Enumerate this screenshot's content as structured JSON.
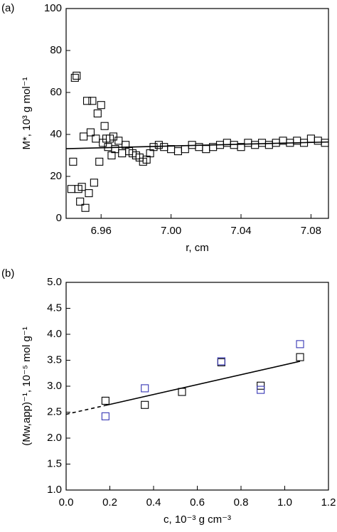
{
  "chart_data": [
    {
      "type": "scatter",
      "panel_label": "(a)",
      "x_label": "r, cm",
      "y_label": "M*, 10³ g mol⁻¹",
      "xlim": [
        6.94,
        7.09
      ],
      "xticks": [
        6.96,
        {
          "value": 7,
          "label": "7.00"
        },
        7.04,
        7.08
      ],
      "ylim": [
        0,
        100
      ],
      "yticks": [
        0,
        20,
        40,
        60,
        80,
        100
      ],
      "series": [
        {
          "color": "#000000",
          "x": [
            6.943,
            6.944,
            6.945,
            6.946,
            6.947,
            6.948,
            6.949,
            6.95,
            6.951,
            6.952,
            6.953,
            6.954,
            6.955,
            6.956,
            6.957,
            6.958,
            6.959,
            6.96,
            6.961,
            6.962,
            6.963,
            6.964,
            6.965,
            6.966,
            6.967,
            6.968,
            6.97,
            6.972,
            6.974,
            6.976,
            6.978,
            6.98,
            6.982,
            6.984,
            6.986,
            6.988,
            6.99,
            6.993,
            6.996,
            7.0,
            7.004,
            7.008,
            7.012,
            7.016,
            7.02,
            7.024,
            7.028,
            7.032,
            7.036,
            7.04,
            7.044,
            7.048,
            7.052,
            7.056,
            7.06,
            7.064,
            7.068,
            7.072,
            7.076,
            7.08,
            7.084,
            7.088
          ],
          "values": [
            14,
            27,
            67,
            68,
            14,
            8,
            15,
            39,
            5,
            56,
            12,
            41,
            56,
            17,
            38,
            50,
            27,
            54,
            36,
            44,
            38,
            34,
            38,
            30,
            39,
            33,
            37,
            31,
            35,
            32,
            31,
            30,
            29,
            27,
            28,
            31,
            34,
            35,
            34,
            33,
            32,
            33,
            35,
            34,
            33,
            34,
            35,
            36,
            35,
            34,
            36,
            35,
            36,
            35,
            36,
            37,
            36,
            37,
            36,
            38,
            37,
            36
          ]
        }
      ],
      "fit": {
        "color": "#000000",
        "x": [
          6.94,
          7.09
        ],
        "values": [
          33.2,
          36.4
        ]
      }
    },
    {
      "type": "scatter",
      "panel_label": "(b)",
      "x_label": "c, 10⁻³ g cm⁻³",
      "y_label": "(Mw,app)⁻¹, 10⁻⁵ mol g⁻¹",
      "xlim": [
        0,
        1.2
      ],
      "xticks": [
        {
          "value": 0,
          "label": "0.0"
        },
        0.2,
        0.4,
        0.6,
        0.8,
        {
          "value": 1,
          "label": "1.0"
        },
        1.2
      ],
      "ylim": [
        1,
        5
      ],
      "yticks": [
        {
          "value": 1,
          "label": "1.0"
        },
        1.5,
        {
          "value": 2,
          "label": "2.0"
        },
        2.5,
        {
          "value": 3,
          "label": "3.0"
        },
        3.5,
        {
          "value": 4,
          "label": "4.0"
        },
        4.5,
        {
          "value": 5,
          "label": "5.0"
        }
      ],
      "series": [
        {
          "color": "#000000",
          "x": [
            0.18,
            0.36,
            0.53,
            0.71,
            0.89,
            1.07
          ],
          "values": [
            2.72,
            2.64,
            2.89,
            3.46,
            3.01,
            3.56
          ]
        },
        {
          "color": "#3636b4",
          "x": [
            0.18,
            0.36,
            0.53,
            0.71,
            0.89,
            1.07
          ],
          "values": [
            2.42,
            2.96,
            null,
            3.48,
            2.93,
            3.81
          ]
        }
      ],
      "fit": {
        "color": "#000000",
        "x": [
          0,
          0.18,
          1.07
        ],
        "values": [
          2.46,
          2.63,
          3.48
        ],
        "dashed_until": 0.18
      }
    }
  ]
}
